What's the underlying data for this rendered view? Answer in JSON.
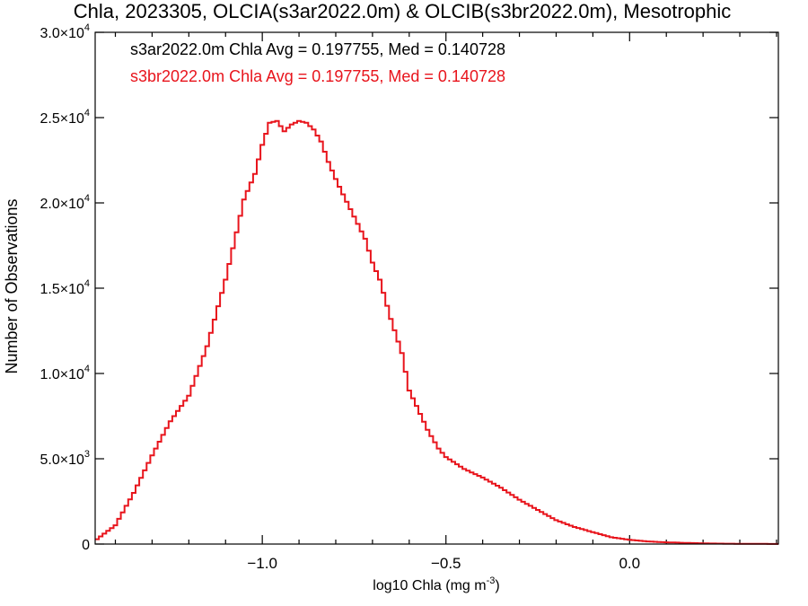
{
  "chart_data": {
    "type": "line",
    "title": "Chla, 2023305, OLCIA(s3ar2022.0m) & OLCIB(s3br2022.0m), Mesotrophic",
    "xlabel_main": "log10 Chla (mg m",
    "xlabel_sup": "-3",
    "xlabel_tail": ")",
    "ylabel": "Number of Observations",
    "xlim": [
      -1.455,
      0.405
    ],
    "ylim": [
      0,
      30000
    ],
    "x_ticks": [
      {
        "value": -1.0,
        "label": "−1.0"
      },
      {
        "value": -0.5,
        "label": "−0.5"
      },
      {
        "value": 0.0,
        "label": "0.0"
      }
    ],
    "y_ticks": [
      {
        "value": 0,
        "mant": "0",
        "exp": ""
      },
      {
        "value": 5000,
        "mant": "5.0×10",
        "exp": "3"
      },
      {
        "value": 10000,
        "mant": "1.0×10",
        "exp": "4"
      },
      {
        "value": 15000,
        "mant": "1.5×10",
        "exp": "4"
      },
      {
        "value": 20000,
        "mant": "2.0×10",
        "exp": "4"
      },
      {
        "value": 25000,
        "mant": "2.5×10",
        "exp": "4"
      },
      {
        "value": 30000,
        "mant": "3.0×10",
        "exp": "4"
      }
    ],
    "annotations": [
      {
        "text": "s3ar2022.0m Chla Avg = 0.197755, Med = 0.140728",
        "color": "#000000"
      },
      {
        "text": "s3br2022.0m Chla Avg = 0.197755, Med = 0.140728",
        "color": "#e8141c"
      }
    ],
    "series": [
      {
        "color": "#e8141c",
        "style": "step",
        "x": [
          -1.455,
          -1.4,
          -1.35,
          -1.3,
          -1.25,
          -1.2,
          -1.15,
          -1.1,
          -1.075,
          -1.05,
          -1.02,
          -1.0,
          -0.98,
          -0.96,
          -0.94,
          -0.92,
          -0.9,
          -0.88,
          -0.86,
          -0.84,
          -0.82,
          -0.8,
          -0.78,
          -0.75,
          -0.72,
          -0.7,
          -0.68,
          -0.65,
          -0.62,
          -0.6,
          -0.58,
          -0.55,
          -0.52,
          -0.5,
          -0.45,
          -0.4,
          -0.35,
          -0.3,
          -0.25,
          -0.2,
          -0.15,
          -0.1,
          -0.05,
          0.0,
          0.05,
          0.1,
          0.15,
          0.2,
          0.25,
          0.3,
          0.35,
          0.405
        ],
        "y": [
          200,
          1100,
          3000,
          5200,
          7200,
          8700,
          11600,
          15500,
          17800,
          20200,
          21700,
          23400,
          24700,
          24800,
          24200,
          24600,
          24800,
          24700,
          24300,
          23600,
          22400,
          21400,
          20500,
          19200,
          17900,
          16500,
          15500,
          13200,
          11200,
          9000,
          8100,
          6700,
          5600,
          5100,
          4400,
          3900,
          3300,
          2600,
          2000,
          1400,
          1000,
          700,
          400,
          250,
          150,
          100,
          70,
          40,
          25,
          15,
          10,
          5
        ]
      }
    ]
  }
}
